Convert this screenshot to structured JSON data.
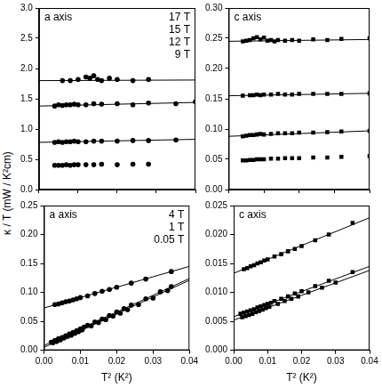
{
  "ylabel": "κ / T (mW / K²cm)",
  "chart_data": [
    {
      "type": "scatter",
      "title": "a axis",
      "legend": "upper right",
      "grid": false,
      "tick_labels": "y",
      "xlim": [
        0,
        0.04
      ],
      "xticks": [
        {
          "value": 0,
          "label": "0.00"
        },
        {
          "value": 0.01,
          "label": "0.01"
        },
        {
          "value": 0.02,
          "label": "0.02"
        },
        {
          "value": 0.03,
          "label": "0.03"
        },
        {
          "value": 0.04,
          "label": "0.04"
        }
      ],
      "ylim": [
        0,
        3.0
      ],
      "yticks": [
        {
          "value": 0,
          "label": "0.0"
        },
        {
          "value": 0.5,
          "label": "0.5"
        },
        {
          "value": 1.0,
          "label": "1.0"
        },
        {
          "value": 1.5,
          "label": "1.5"
        },
        {
          "value": 2.0,
          "label": "2.0"
        },
        {
          "value": 2.5,
          "label": "2.5"
        },
        {
          "value": 3.0,
          "label": "3.0"
        }
      ],
      "series": [
        {
          "name": "17 T",
          "color": "#000000",
          "marker": "circle",
          "x": [
            0.006,
            0.008,
            0.01,
            0.012,
            0.013,
            0.014,
            0.015,
            0.016,
            0.018,
            0.02,
            0.024,
            0.028
          ],
          "values": [
            1.8,
            1.8,
            1.82,
            1.86,
            1.84,
            1.88,
            1.82,
            1.8,
            1.84,
            1.82,
            1.8,
            1.82
          ],
          "fit_x": [
            0,
            0.04
          ],
          "fit": [
            1.8,
            1.81
          ]
        },
        {
          "name": "15 T",
          "color": "#000000",
          "marker": "circle",
          "x": [
            0.004,
            0.005,
            0.006,
            0.007,
            0.008,
            0.009,
            0.01,
            0.012,
            0.014,
            0.016,
            0.02,
            0.024,
            0.028,
            0.035,
            0.04
          ],
          "values": [
            1.38,
            1.4,
            1.39,
            1.4,
            1.4,
            1.41,
            1.4,
            1.4,
            1.42,
            1.41,
            1.42,
            1.4,
            1.43,
            1.42,
            1.45
          ],
          "fit_x": [
            0,
            0.04
          ],
          "fit": [
            1.38,
            1.44
          ]
        },
        {
          "name": "12 T",
          "color": "#000000",
          "marker": "circle",
          "x": [
            0.004,
            0.005,
            0.006,
            0.007,
            0.008,
            0.009,
            0.01,
            0.012,
            0.014,
            0.016,
            0.02,
            0.024,
            0.028,
            0.035
          ],
          "values": [
            0.78,
            0.79,
            0.78,
            0.79,
            0.79,
            0.8,
            0.79,
            0.79,
            0.8,
            0.8,
            0.8,
            0.81,
            0.81,
            0.82
          ],
          "fit_x": [
            0,
            0.04
          ],
          "fit": [
            0.78,
            0.83
          ]
        },
        {
          "name": "9 T",
          "color": "#000000",
          "marker": "circle",
          "x": [
            0.004,
            0.005,
            0.006,
            0.007,
            0.008,
            0.009,
            0.01,
            0.012,
            0.014,
            0.016,
            0.02,
            0.024,
            0.028
          ],
          "values": [
            0.4,
            0.4,
            0.4,
            0.41,
            0.4,
            0.41,
            0.41,
            0.41,
            0.41,
            0.42,
            0.41,
            0.42,
            0.42
          ]
        }
      ]
    },
    {
      "type": "scatter",
      "title": "c axis",
      "grid": false,
      "tick_labels": "y",
      "xlim": [
        0,
        0.04
      ],
      "xticks": [
        {
          "value": 0,
          "label": "0.00"
        },
        {
          "value": 0.01,
          "label": "0.01"
        },
        {
          "value": 0.02,
          "label": "0.02"
        },
        {
          "value": 0.03,
          "label": "0.03"
        },
        {
          "value": 0.04,
          "label": "0.04"
        }
      ],
      "ylim": [
        0,
        0.3
      ],
      "yticks": [
        {
          "value": 0,
          "label": "0.00"
        },
        {
          "value": 0.05,
          "label": "0.05"
        },
        {
          "value": 0.1,
          "label": "0.10"
        },
        {
          "value": 0.15,
          "label": "0.15"
        },
        {
          "value": 0.2,
          "label": "0.20"
        },
        {
          "value": 0.25,
          "label": "0.25"
        },
        {
          "value": 0.3,
          "label": "0.30"
        }
      ],
      "series": [
        {
          "color": "#000000",
          "marker": "square",
          "x": [
            0.004,
            0.005,
            0.006,
            0.007,
            0.008,
            0.009,
            0.01,
            0.011,
            0.012,
            0.013,
            0.014,
            0.016,
            0.018,
            0.02,
            0.024,
            0.028,
            0.032,
            0.04
          ],
          "values": [
            0.245,
            0.246,
            0.247,
            0.25,
            0.252,
            0.248,
            0.251,
            0.246,
            0.247,
            0.245,
            0.247,
            0.246,
            0.247,
            0.246,
            0.248,
            0.247,
            0.249,
            0.25
          ],
          "fit_x": [
            0,
            0.04
          ],
          "fit": [
            0.245,
            0.248
          ]
        },
        {
          "color": "#000000",
          "marker": "square",
          "x": [
            0.004,
            0.006,
            0.007,
            0.008,
            0.009,
            0.01,
            0.012,
            0.014,
            0.016,
            0.018,
            0.02,
            0.024,
            0.028,
            0.032,
            0.04
          ],
          "values": [
            0.155,
            0.156,
            0.156,
            0.157,
            0.156,
            0.157,
            0.157,
            0.158,
            0.157,
            0.157,
            0.158,
            0.158,
            0.158,
            0.158,
            0.159
          ],
          "fit_x": [
            0,
            0.04
          ],
          "fit": [
            0.155,
            0.159
          ]
        },
        {
          "color": "#000000",
          "marker": "square",
          "x": [
            0.004,
            0.005,
            0.006,
            0.007,
            0.008,
            0.009,
            0.01,
            0.012,
            0.014,
            0.016,
            0.018,
            0.02,
            0.024,
            0.028,
            0.032,
            0.04
          ],
          "values": [
            0.088,
            0.089,
            0.09,
            0.09,
            0.091,
            0.092,
            0.091,
            0.092,
            0.093,
            0.093,
            0.093,
            0.094,
            0.094,
            0.095,
            0.096,
            0.097
          ],
          "fit_x": [
            0,
            0.04
          ],
          "fit": [
            0.088,
            0.097
          ]
        },
        {
          "color": "#000000",
          "marker": "square",
          "x": [
            0.004,
            0.005,
            0.006,
            0.007,
            0.008,
            0.009,
            0.01,
            0.012,
            0.014,
            0.016,
            0.018,
            0.02,
            0.024,
            0.028,
            0.032,
            0.04
          ],
          "values": [
            0.048,
            0.048,
            0.049,
            0.049,
            0.05,
            0.05,
            0.05,
            0.051,
            0.051,
            0.052,
            0.052,
            0.052,
            0.053,
            0.053,
            0.054,
            0.055
          ]
        }
      ]
    },
    {
      "type": "scatter",
      "title": "a axis",
      "legend": "upper right",
      "grid": false,
      "xlabel": "T² (K²)",
      "xlim": [
        0,
        0.04
      ],
      "xticks": [
        {
          "value": 0,
          "label": "0.00"
        },
        {
          "value": 0.01,
          "label": "0.01"
        },
        {
          "value": 0.02,
          "label": "0.02"
        },
        {
          "value": 0.03,
          "label": "0.03"
        },
        {
          "value": 0.04,
          "label": "0.04"
        }
      ],
      "ylim": [
        0,
        0.25
      ],
      "yticks": [
        {
          "value": 0,
          "label": "0.00"
        },
        {
          "value": 0.05,
          "label": "0.05"
        },
        {
          "value": 0.1,
          "label": "0.10"
        },
        {
          "value": 0.15,
          "label": "0.15"
        },
        {
          "value": 0.2,
          "label": "0.20"
        },
        {
          "value": 0.25,
          "label": "0.25"
        }
      ],
      "series": [
        {
          "name": "4 T",
          "color": "#000000",
          "marker": "circle",
          "x": [
            0.003,
            0.004,
            0.005,
            0.006,
            0.007,
            0.008,
            0.009,
            0.01,
            0.012,
            0.014,
            0.016,
            0.018,
            0.02,
            0.024,
            0.028,
            0.035
          ],
          "values": [
            0.079,
            0.08,
            0.082,
            0.084,
            0.085,
            0.087,
            0.089,
            0.091,
            0.094,
            0.098,
            0.102,
            0.105,
            0.109,
            0.116,
            0.123,
            0.136
          ],
          "fit_x": [
            0,
            0.04
          ],
          "fit": [
            0.073,
            0.145
          ]
        },
        {
          "name": "1 T",
          "color": "#000000",
          "marker": "circle",
          "x": [
            0.002,
            0.003,
            0.004,
            0.005,
            0.006,
            0.007,
            0.008,
            0.009,
            0.01,
            0.011,
            0.012,
            0.014,
            0.016,
            0.018,
            0.02,
            0.022,
            0.024,
            0.028,
            0.032,
            0.035
          ],
          "values": [
            0.014,
            0.017,
            0.02,
            0.022,
            0.025,
            0.028,
            0.031,
            0.034,
            0.037,
            0.04,
            0.043,
            0.049,
            0.054,
            0.06,
            0.066,
            0.072,
            0.078,
            0.089,
            0.101,
            0.11
          ],
          "fit_x": [
            0,
            0.04
          ],
          "fit": [
            0.008,
            0.124
          ]
        },
        {
          "name": "0.05 T",
          "color": "#000000",
          "marker": "circle",
          "x": [
            0.0025,
            0.0035,
            0.0045,
            0.0055,
            0.0065,
            0.0075,
            0.0085,
            0.0095,
            0.0105,
            0.013,
            0.015,
            0.017,
            0.019,
            0.021,
            0.023,
            0.026,
            0.03,
            0.034
          ],
          "values": [
            0.013,
            0.015,
            0.018,
            0.021,
            0.024,
            0.026,
            0.029,
            0.032,
            0.035,
            0.042,
            0.048,
            0.053,
            0.059,
            0.064,
            0.07,
            0.079,
            0.09,
            0.103
          ],
          "fit_x": [
            0,
            0.04
          ],
          "fit": [
            0.005,
            0.121
          ]
        }
      ]
    },
    {
      "type": "scatter",
      "title": "c axis",
      "grid": false,
      "xlabel": "T² (K²)",
      "xlim": [
        0,
        0.04
      ],
      "xticks": [
        {
          "value": 0,
          "label": "0.00"
        },
        {
          "value": 0.01,
          "label": "0.01"
        },
        {
          "value": 0.02,
          "label": "0.02"
        },
        {
          "value": 0.03,
          "label": "0.03"
        },
        {
          "value": 0.04,
          "label": "0.04"
        }
      ],
      "ylim": [
        0,
        0.025
      ],
      "yticks": [
        {
          "value": 0,
          "label": "0.000"
        },
        {
          "value": 0.005,
          "label": "0.005"
        },
        {
          "value": 0.01,
          "label": "0.010"
        },
        {
          "value": 0.015,
          "label": "0.015"
        },
        {
          "value": 0.02,
          "label": "0.020"
        },
        {
          "value": 0.025,
          "label": "0.025"
        }
      ],
      "series": [
        {
          "color": "#000000",
          "marker": "square",
          "x": [
            0.003,
            0.004,
            0.005,
            0.006,
            0.007,
            0.008,
            0.009,
            0.01,
            0.012,
            0.014,
            0.016,
            0.018,
            0.02,
            0.024,
            0.028,
            0.035
          ],
          "values": [
            0.014,
            0.0142,
            0.0145,
            0.0147,
            0.015,
            0.0152,
            0.0155,
            0.0157,
            0.0162,
            0.0166,
            0.0171,
            0.0175,
            0.018,
            0.019,
            0.02,
            0.022
          ],
          "fit_x": [
            0,
            0.04
          ],
          "fit": [
            0.0133,
            0.0229
          ]
        },
        {
          "color": "#000000",
          "marker": "square",
          "x": [
            0.002,
            0.003,
            0.004,
            0.005,
            0.006,
            0.007,
            0.008,
            0.009,
            0.01,
            0.011,
            0.012,
            0.014,
            0.016,
            0.018,
            0.02,
            0.024,
            0.028,
            0.035
          ],
          "values": [
            0.0063,
            0.0065,
            0.0067,
            0.0069,
            0.0071,
            0.0074,
            0.0076,
            0.0078,
            0.008,
            0.0082,
            0.0085,
            0.0089,
            0.0093,
            0.0098,
            0.0102,
            0.0111,
            0.012,
            0.0135
          ],
          "fit_x": [
            0,
            0.04
          ],
          "fit": [
            0.0058,
            0.0145
          ]
        },
        {
          "color": "#000000",
          "marker": "square",
          "x": [
            0.0025,
            0.0035,
            0.0045,
            0.0055,
            0.0065,
            0.0075,
            0.0085,
            0.0095,
            0.0105,
            0.013,
            0.015,
            0.017,
            0.019,
            0.022,
            0.026,
            0.03
          ],
          "values": [
            0.0057,
            0.0059,
            0.0061,
            0.0063,
            0.0066,
            0.0068,
            0.007,
            0.0073,
            0.0075,
            0.008,
            0.0085,
            0.0089,
            0.0093,
            0.01,
            0.0108,
            0.0117
          ],
          "fit_x": [
            0,
            0.04
          ],
          "fit": [
            0.0052,
            0.0138
          ]
        }
      ]
    }
  ]
}
